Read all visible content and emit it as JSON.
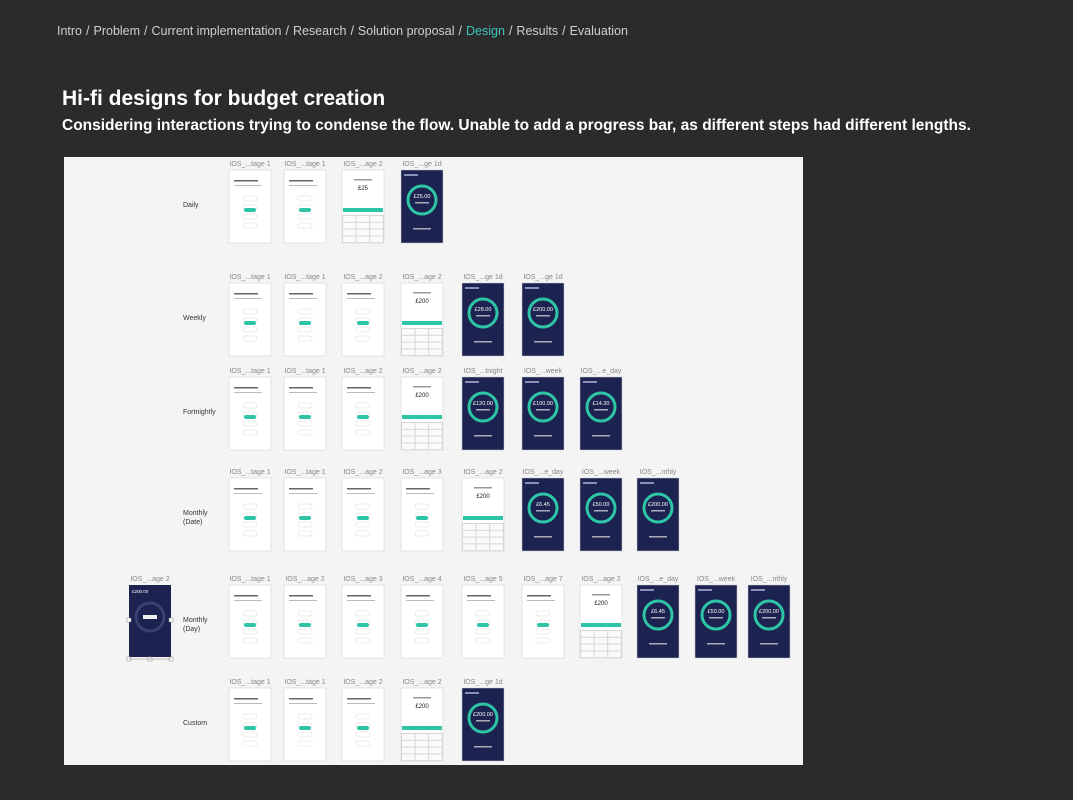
{
  "breadcrumb": {
    "items": [
      "Intro",
      "Problem",
      "Current implementation",
      "Research",
      "Solution proposal",
      "Design",
      "Results",
      "Evaluation"
    ],
    "separator": "/",
    "active_index": 5
  },
  "header": {
    "title": "Hi-fi designs for budget creation",
    "subtitle": "Considering interactions trying to condense the flow. Unable to add a progress bar, as different steps had different lengths."
  },
  "board": {
    "selected": {
      "label": "IOS_...age 2",
      "amount": "£200.00"
    },
    "rows": [
      {
        "label": "Daily",
        "screens": [
          {
            "label": "IOS_...tage 1",
            "kind": "white"
          },
          {
            "label": "IOS_...tage 1",
            "kind": "white"
          },
          {
            "label": "IOS_...age 2",
            "kind": "keypad",
            "amount": "£25"
          },
          {
            "label": "IOS_...ge 1d",
            "kind": "dark",
            "amount": "£25.00"
          }
        ]
      },
      {
        "label": "Weekly",
        "screens": [
          {
            "label": "IOS_...tage 1",
            "kind": "white"
          },
          {
            "label": "IOS_...tage 1",
            "kind": "white"
          },
          {
            "label": "IOS_...age 2",
            "kind": "white"
          },
          {
            "label": "IOS_...age 2",
            "kind": "keypad",
            "amount": "£200"
          },
          {
            "label": "IOS_...ge 1d",
            "kind": "dark",
            "amount": "£28.00"
          },
          {
            "label": "IOS_...ge 1d",
            "kind": "dark",
            "amount": "£200.00"
          }
        ]
      },
      {
        "label": "Fortnightly",
        "screens": [
          {
            "label": "IOS_...tage 1",
            "kind": "white"
          },
          {
            "label": "IOS_...tage 1",
            "kind": "white"
          },
          {
            "label": "IOS_...age 2",
            "kind": "white"
          },
          {
            "label": "IOS_...age 2",
            "kind": "keypad",
            "amount": "£200"
          },
          {
            "label": "IOS_...tnight",
            "kind": "dark",
            "amount": "£120.00"
          },
          {
            "label": "IOS_...week",
            "kind": "dark",
            "amount": "£100.00"
          },
          {
            "label": "IOS_...e_day",
            "kind": "dark",
            "amount": "£14.30"
          }
        ]
      },
      {
        "label": "Monthly (Date)",
        "screens": [
          {
            "label": "IOS_...tage 1",
            "kind": "white"
          },
          {
            "label": "IOS_...tage 1",
            "kind": "white"
          },
          {
            "label": "IOS_...age 2",
            "kind": "white"
          },
          {
            "label": "IOS_...age 3",
            "kind": "white"
          },
          {
            "label": "IOS_...age 2",
            "kind": "keypad",
            "amount": "£200"
          },
          {
            "label": "IOS_...e_day",
            "kind": "dark",
            "amount": "£6.45"
          },
          {
            "label": "IOS_...week",
            "kind": "dark",
            "amount": "£50.00"
          },
          {
            "label": "IOS_...nthly",
            "kind": "dark",
            "amount": "£200.00"
          }
        ]
      },
      {
        "label": "Monthly (Day)",
        "screens": [
          {
            "label": "IOS_...tage 1",
            "kind": "white"
          },
          {
            "label": "IOS_...age 2",
            "kind": "white"
          },
          {
            "label": "IOS_...age 3",
            "kind": "white"
          },
          {
            "label": "IOS_...age 4",
            "kind": "white"
          },
          {
            "label": "IOS_...age 5",
            "kind": "white"
          },
          {
            "label": "IOS_...age 7",
            "kind": "white"
          },
          {
            "label": "IOS_...age 2",
            "kind": "keypad",
            "amount": "£200"
          },
          {
            "label": "IOS_...e_day",
            "kind": "dark",
            "amount": "£6.45"
          },
          {
            "label": "IOS_...week",
            "kind": "dark",
            "amount": "£50.00"
          },
          {
            "label": "IOS_...nthly",
            "kind": "dark",
            "amount": "£200.00"
          }
        ]
      },
      {
        "label": "Custom",
        "screens": [
          {
            "label": "IOS_...tage 1",
            "kind": "white"
          },
          {
            "label": "IOS_...tage 1",
            "kind": "white"
          },
          {
            "label": "IOS_...age 2",
            "kind": "white"
          },
          {
            "label": "IOS_...age 2",
            "kind": "keypad",
            "amount": "£200"
          },
          {
            "label": "IOS_...ge 1d",
            "kind": "dark",
            "amount": "£200.00"
          }
        ]
      }
    ]
  }
}
